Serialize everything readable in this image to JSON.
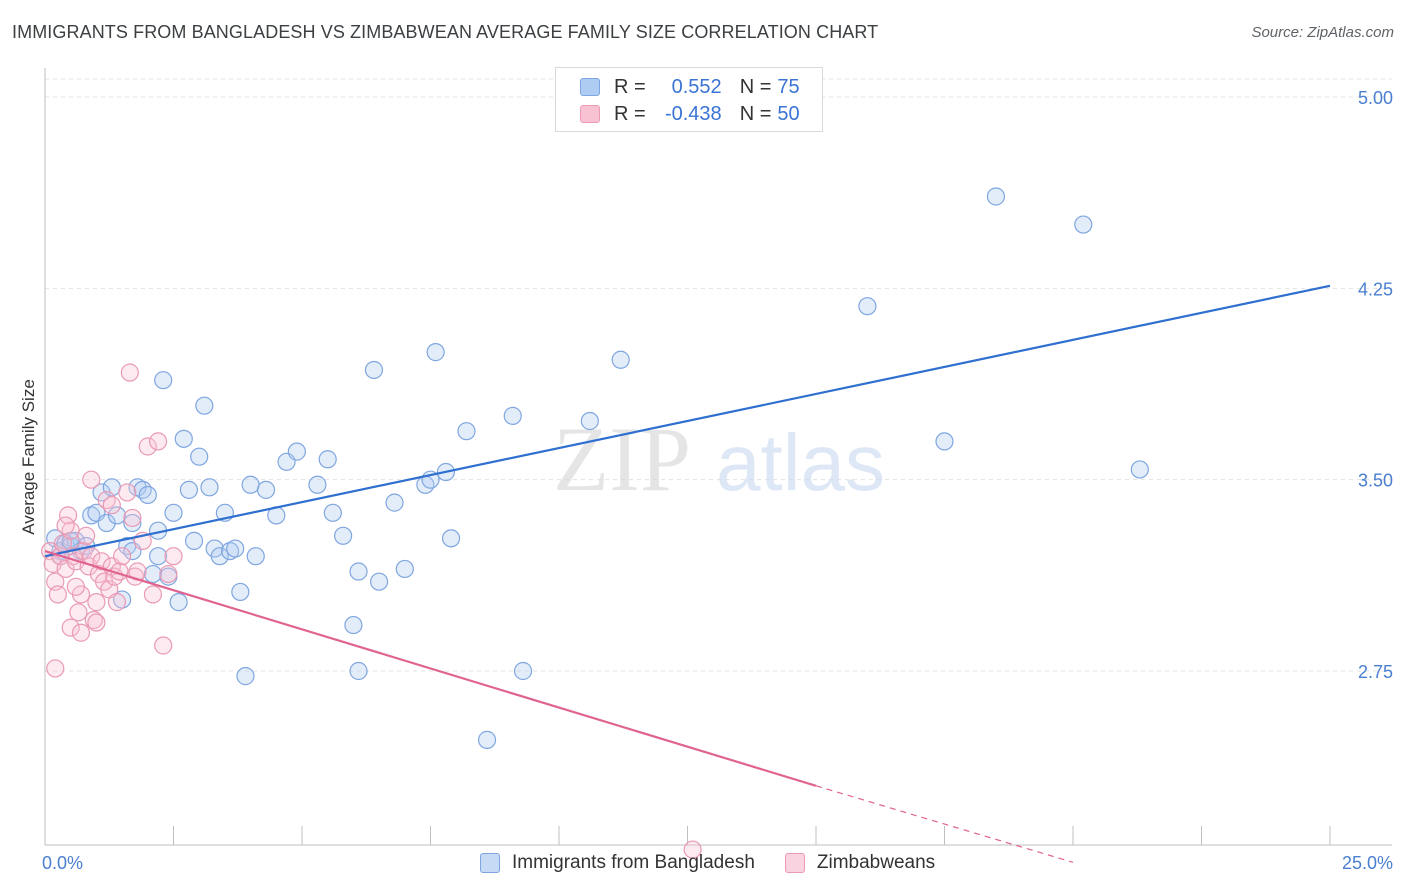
{
  "title": "IMMIGRANTS FROM BANGLADESH VS ZIMBABWEAN AVERAGE FAMILY SIZE CORRELATION CHART",
  "source": "Source: ZipAtlas.com",
  "watermark": {
    "zip": "ZIP",
    "atlas": "atlas"
  },
  "legend": {
    "rows": [
      {
        "r_label": "R =",
        "r_value": "0.552",
        "n_label": "N =",
        "n_value": "75",
        "color": "#aecbf2",
        "border": "#7fa6e0"
      },
      {
        "r_label": "R =",
        "r_value": "-0.438",
        "n_label": "N =",
        "n_value": "50",
        "color": "#f8c2d3",
        "border": "#e99ab4"
      }
    ]
  },
  "bottom_legend": [
    {
      "label": "Immigrants from Bangladesh",
      "color": "#c6d9f5",
      "border": "#7fa6e0"
    },
    {
      "label": "Zimbabweans",
      "color": "#f9d3df",
      "border": "#e99ab4"
    }
  ],
  "chart_data": {
    "type": "scatter",
    "xlabel": "",
    "ylabel": "Average Family Size",
    "xlim": [
      0,
      25
    ],
    "ylim": [
      2.0,
      5.1
    ],
    "x_tick_labels": [
      "0.0%",
      "25.0%"
    ],
    "y_ticks": [
      2.75,
      3.5,
      4.25,
      5.0
    ],
    "y_tick_labels": [
      "2.75",
      "3.50",
      "4.25",
      "5.00"
    ],
    "series": [
      {
        "name": "Immigrants from Bangladesh",
        "color": "#7fa6e0",
        "fill": "rgba(174,203,242,0.35)",
        "trend": {
          "x0": 0.0,
          "y0": 3.2,
          "x1": 25.0,
          "y1": 4.26,
          "color": "#2f6fcf"
        },
        "points": [
          [
            0.2,
            3.27
          ],
          [
            0.3,
            3.22
          ],
          [
            0.4,
            3.25
          ],
          [
            0.5,
            3.24
          ],
          [
            0.6,
            3.26
          ],
          [
            0.7,
            3.22
          ],
          [
            0.8,
            3.24
          ],
          [
            0.9,
            3.36
          ],
          [
            1.0,
            3.37
          ],
          [
            1.1,
            3.45
          ],
          [
            1.2,
            3.33
          ],
          [
            1.3,
            3.47
          ],
          [
            1.4,
            3.36
          ],
          [
            1.5,
            3.03
          ],
          [
            1.6,
            3.24
          ],
          [
            1.7,
            3.22
          ],
          [
            1.8,
            3.47
          ],
          [
            1.9,
            3.46
          ],
          [
            2.0,
            3.44
          ],
          [
            2.1,
            3.13
          ],
          [
            2.2,
            3.2
          ],
          [
            2.3,
            3.89
          ],
          [
            2.4,
            3.12
          ],
          [
            2.5,
            3.37
          ],
          [
            2.6,
            3.02
          ],
          [
            2.7,
            3.66
          ],
          [
            2.8,
            3.46
          ],
          [
            2.9,
            3.26
          ],
          [
            3.0,
            3.59
          ],
          [
            3.1,
            3.79
          ],
          [
            3.2,
            3.47
          ],
          [
            3.3,
            3.23
          ],
          [
            3.4,
            3.2
          ],
          [
            3.5,
            3.37
          ],
          [
            3.6,
            3.22
          ],
          [
            3.7,
            3.23
          ],
          [
            3.8,
            3.06
          ],
          [
            3.9,
            2.73
          ],
          [
            4.0,
            3.48
          ],
          [
            4.1,
            3.2
          ],
          [
            4.3,
            3.46
          ],
          [
            4.5,
            3.36
          ],
          [
            4.7,
            3.57
          ],
          [
            4.9,
            3.61
          ],
          [
            5.3,
            3.48
          ],
          [
            5.5,
            3.58
          ],
          [
            5.6,
            3.37
          ],
          [
            5.8,
            3.28
          ],
          [
            6.0,
            2.93
          ],
          [
            6.1,
            3.14
          ],
          [
            6.4,
            3.93
          ],
          [
            6.5,
            3.1
          ],
          [
            6.8,
            3.41
          ],
          [
            7.0,
            3.15
          ],
          [
            7.4,
            3.48
          ],
          [
            7.5,
            3.5
          ],
          [
            7.6,
            4.0
          ],
          [
            7.8,
            3.53
          ],
          [
            7.9,
            3.27
          ],
          [
            8.2,
            3.69
          ],
          [
            8.6,
            2.48
          ],
          [
            9.1,
            3.75
          ],
          [
            9.3,
            2.75
          ],
          [
            10.6,
            3.73
          ],
          [
            11.2,
            3.97
          ],
          [
            6.1,
            2.75
          ],
          [
            16.0,
            4.18
          ],
          [
            17.5,
            3.65
          ],
          [
            18.5,
            4.61
          ],
          [
            21.3,
            3.54
          ],
          [
            20.2,
            4.5
          ],
          [
            0.3,
            3.2
          ],
          [
            1.7,
            3.33
          ],
          [
            2.2,
            3.3
          ],
          [
            0.5,
            3.26
          ]
        ]
      },
      {
        "name": "Zimbabweans",
        "color": "#e99ab4",
        "fill": "rgba(248,194,211,0.35)",
        "trend": {
          "x0": 0.0,
          "y0": 3.22,
          "x1": 15.0,
          "y1": 2.3,
          "dash_x1": 20.0,
          "dash_y1": 2.0,
          "color": "#e06492"
        },
        "points": [
          [
            0.1,
            3.22
          ],
          [
            0.15,
            3.17
          ],
          [
            0.2,
            3.1
          ],
          [
            0.25,
            3.05
          ],
          [
            0.3,
            3.2
          ],
          [
            0.35,
            3.25
          ],
          [
            0.4,
            3.15
          ],
          [
            0.45,
            3.36
          ],
          [
            0.5,
            3.3
          ],
          [
            0.55,
            3.2
          ],
          [
            0.6,
            3.18
          ],
          [
            0.65,
            2.98
          ],
          [
            0.7,
            3.05
          ],
          [
            0.75,
            3.22
          ],
          [
            0.8,
            3.28
          ],
          [
            0.85,
            3.16
          ],
          [
            0.9,
            3.2
          ],
          [
            0.95,
            2.95
          ],
          [
            1.0,
            3.02
          ],
          [
            1.05,
            3.13
          ],
          [
            1.1,
            3.18
          ],
          [
            1.15,
            3.1
          ],
          [
            1.2,
            3.42
          ],
          [
            1.25,
            3.07
          ],
          [
            1.3,
            3.16
          ],
          [
            1.35,
            3.12
          ],
          [
            1.4,
            3.02
          ],
          [
            1.45,
            3.14
          ],
          [
            1.5,
            3.2
          ],
          [
            1.6,
            3.45
          ],
          [
            1.65,
            3.92
          ],
          [
            1.7,
            3.35
          ],
          [
            1.75,
            3.12
          ],
          [
            1.8,
            3.14
          ],
          [
            1.9,
            3.26
          ],
          [
            2.0,
            3.63
          ],
          [
            2.1,
            3.05
          ],
          [
            2.2,
            3.65
          ],
          [
            2.3,
            2.85
          ],
          [
            2.4,
            3.13
          ],
          [
            2.5,
            3.2
          ],
          [
            0.2,
            2.76
          ],
          [
            0.5,
            2.92
          ],
          [
            0.7,
            2.9
          ],
          [
            0.9,
            3.5
          ],
          [
            1.3,
            3.4
          ],
          [
            1.0,
            2.94
          ],
          [
            0.4,
            3.32
          ],
          [
            0.6,
            3.08
          ],
          [
            12.6,
            2.05
          ]
        ]
      }
    ]
  }
}
